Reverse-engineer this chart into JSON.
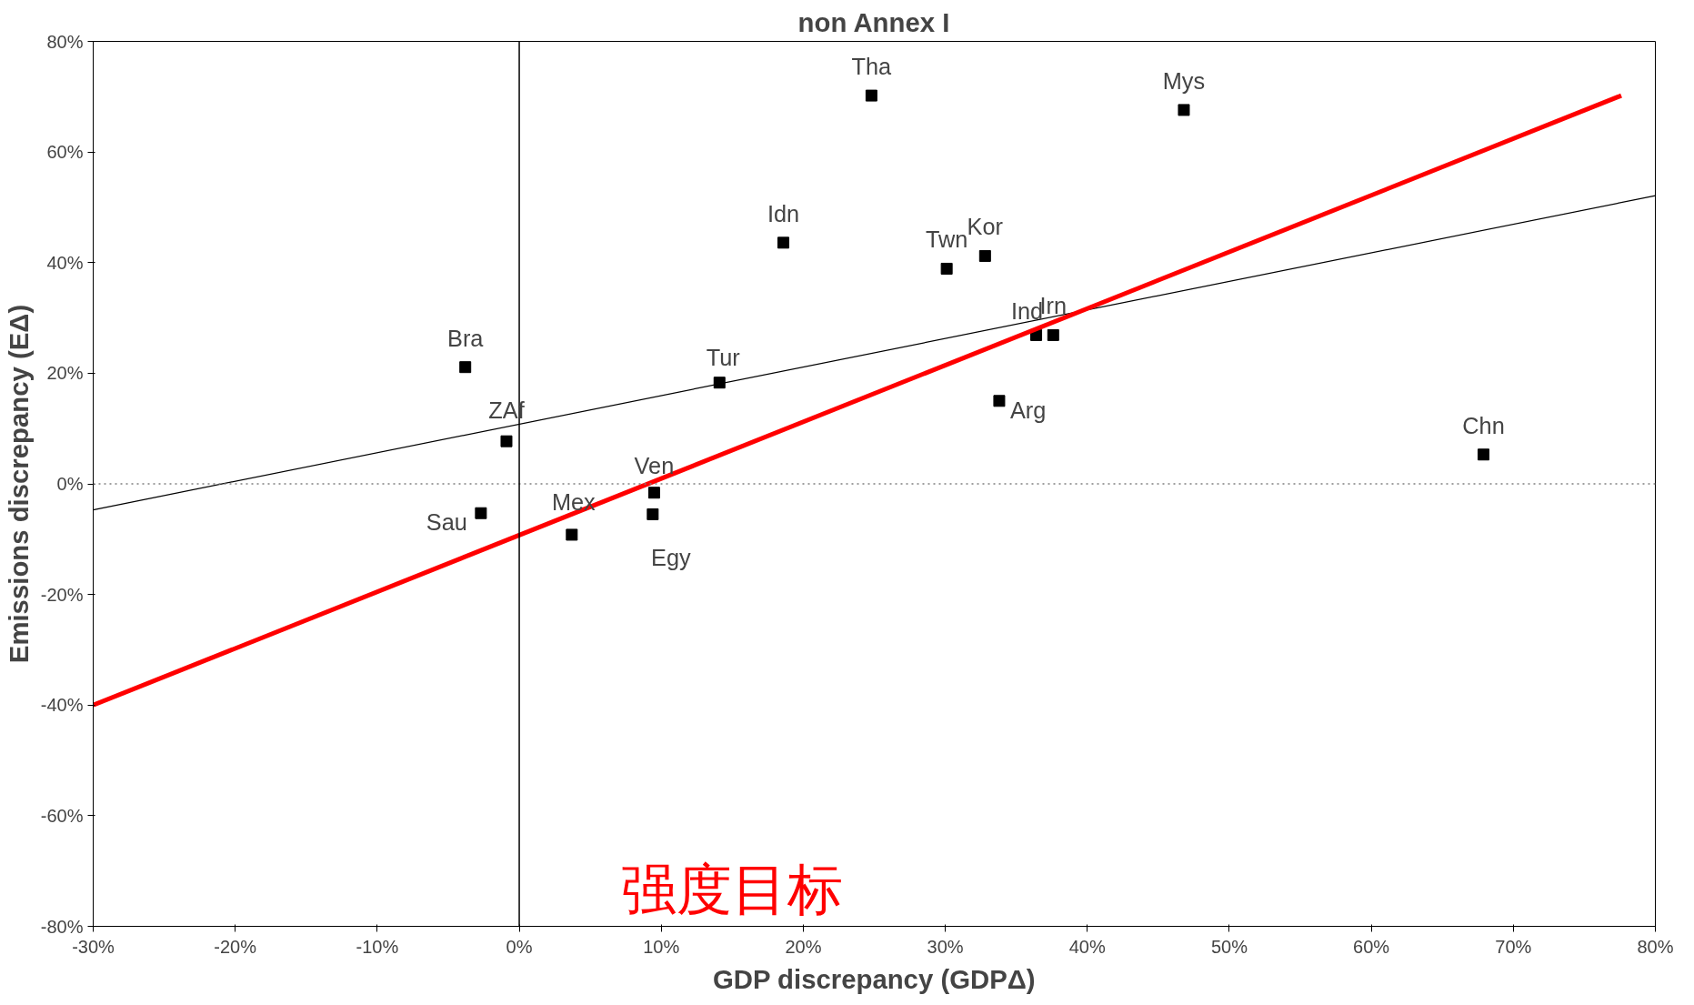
{
  "chart_data": {
    "type": "scatter",
    "title": "non Annex I",
    "xlabel": "GDP discrepancy (GDPΔ)",
    "ylabel": "Emissions discrepancy (EΔ)",
    "xlim": [
      -30,
      80
    ],
    "ylim": [
      -80,
      80
    ],
    "xticks": [
      {
        "value": -30,
        "label": "-30%"
      },
      {
        "value": -20,
        "label": "-20%"
      },
      {
        "value": -10,
        "label": "-10%"
      },
      {
        "value": 0,
        "label": "0%"
      },
      {
        "value": 10,
        "label": "10%"
      },
      {
        "value": 20,
        "label": "20%"
      },
      {
        "value": 30,
        "label": "30%"
      },
      {
        "value": 40,
        "label": "40%"
      },
      {
        "value": 50,
        "label": "50%"
      },
      {
        "value": 60,
        "label": "60%"
      },
      {
        "value": 70,
        "label": "70%"
      },
      {
        "value": 80,
        "label": "80%"
      }
    ],
    "yticks": [
      {
        "value": -80,
        "label": "-80%"
      },
      {
        "value": -60,
        "label": "-60%"
      },
      {
        "value": -40,
        "label": "-40%"
      },
      {
        "value": -20,
        "label": "-20%"
      },
      {
        "value": 0,
        "label": "0%"
      },
      {
        "value": 20,
        "label": "20%"
      },
      {
        "value": 40,
        "label": "40%"
      },
      {
        "value": 60,
        "label": "60%"
      },
      {
        "value": 80,
        "label": "80%"
      }
    ],
    "grid": false,
    "series": [
      {
        "marker": "square",
        "color": "#000000",
        "x": [
          24.8,
          46.8,
          18.6,
          30.1,
          32.8,
          36.4,
          37.6,
          33.8,
          -3.8,
          14.1,
          -0.9,
          67.9,
          9.5,
          -2.7,
          9.4,
          3.7
        ],
        "values": [
          70.2,
          67.6,
          43.6,
          38.9,
          41.2,
          26.9,
          26.9,
          15.0,
          21.1,
          18.3,
          7.7,
          5.3,
          -1.6,
          -5.3,
          -5.5,
          -9.2
        ]
      },
      {
        "type": "line",
        "marker": "none",
        "color": "#000000",
        "x": [
          -30,
          80
        ],
        "values": [
          -4.7,
          52.1
        ]
      },
      {
        "type": "line",
        "marker": "none",
        "color": "#ff0000",
        "x": [
          -30,
          77.6
        ],
        "values": [
          -40,
          70.2
        ]
      }
    ],
    "ref_lines": [
      {
        "axis": "y",
        "value": 0,
        "color": "#808080",
        "line_style": "dotted"
      },
      {
        "axis": "x",
        "value": 0,
        "color": "#000000",
        "line_style": "solid"
      }
    ],
    "annotations": [
      {
        "text": "Tha",
        "x": 24.8,
        "y": 70.2
      },
      {
        "text": "Mys",
        "x": 46.8,
        "y": 67.6
      },
      {
        "text": "Idn",
        "x": 18.6,
        "y": 43.6
      },
      {
        "text": "Twn",
        "x": 30.1,
        "y": 38.9
      },
      {
        "text": "Kor",
        "x": 32.8,
        "y": 41.2
      },
      {
        "text": "Ind",
        "x": 36.4,
        "y": 26.9
      },
      {
        "text": "Irn",
        "x": 37.6,
        "y": 26.9
      },
      {
        "text": "Arg",
        "x": 33.8,
        "y": 15.0
      },
      {
        "text": "Bra",
        "x": -3.8,
        "y": 21.1
      },
      {
        "text": "Tur",
        "x": 14.1,
        "y": 18.3
      },
      {
        "text": "ZAf",
        "x": -0.9,
        "y": 7.7
      },
      {
        "text": "Chn",
        "x": 67.9,
        "y": 5.3
      },
      {
        "text": "Ven",
        "x": 9.5,
        "y": -1.6
      },
      {
        "text": "Sau",
        "x": -2.7,
        "y": -5.3
      },
      {
        "text": "Egy",
        "x": 9.4,
        "y": -5.5
      },
      {
        "text": "Mex",
        "x": 3.7,
        "y": -9.2
      },
      "强度目标"
    ]
  }
}
